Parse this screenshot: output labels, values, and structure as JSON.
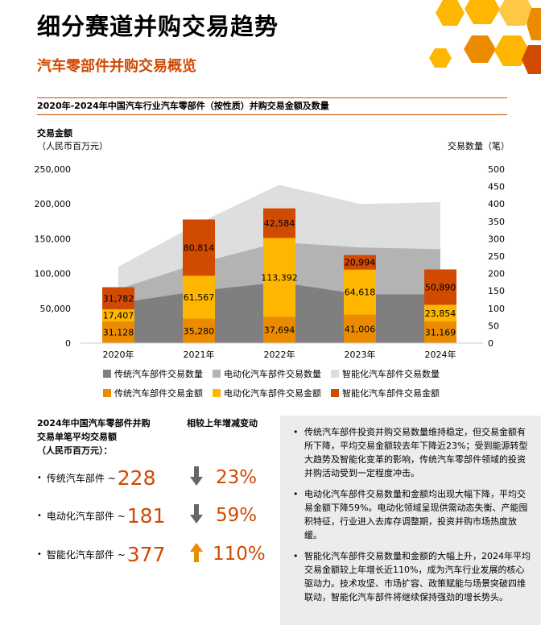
{
  "page": {
    "title": "细分赛道并购交易趋势",
    "subtitle": "汽车零部件并购交易概览",
    "chart_heading": "2020年-2024年中国汽车行业汽车零部件（按性质）并购交易金额及数量"
  },
  "colors": {
    "accent": "#d04a02",
    "trad_count": "#7f7f7f",
    "ev_count": "#b3b3b3",
    "smart_count": "#dedede",
    "trad_amount": "#eb8c00",
    "ev_amount": "#ffb600",
    "smart_amount": "#d04a02"
  },
  "chart_data": {
    "type": "bar",
    "stacked": true,
    "categories": [
      "2020年",
      "2021年",
      "2022年",
      "2023年",
      "2024年"
    ],
    "y_left": {
      "label_line1": "交易金额",
      "label_line2": "（人民币百万元）",
      "ticks": [
        "250,000",
        "200,000",
        "150,000",
        "100,000",
        "50,000",
        "0"
      ],
      "ylim": [
        0,
        250000
      ]
    },
    "y_right": {
      "label": "交易数量（笔）",
      "ticks": [
        "500",
        "450",
        "400",
        "350",
        "300",
        "250",
        "200",
        "150",
        "100",
        "50",
        "0"
      ],
      "ylim": [
        0,
        500
      ]
    },
    "bar_series": [
      {
        "name": "传统汽车部件交易金额",
        "values": [
          31128,
          35280,
          37694,
          41006,
          31169
        ],
        "labels": [
          "31,128",
          "35,280",
          "37,694",
          "41,006",
          "31,169"
        ]
      },
      {
        "name": "电动化汽车部件交易金额",
        "values": [
          17407,
          61567,
          113392,
          64618,
          23854
        ],
        "labels": [
          "17,407",
          "61,567",
          "113,392",
          "64,618",
          "23,854"
        ]
      },
      {
        "name": "智能化汽车部件交易金额",
        "values": [
          31782,
          80814,
          42584,
          20994,
          50890
        ],
        "labels": [
          "31,782",
          "80,814",
          "42,584",
          "20,994",
          "50,890"
        ]
      }
    ],
    "area_series": [
      {
        "name": "传统汽车部件交易数量",
        "values": [
          115,
          150,
          175,
          140,
          140
        ]
      },
      {
        "name": "电动化汽车部件交易数量",
        "values": [
          40,
          80,
          115,
          135,
          130
        ]
      },
      {
        "name": "智能化汽车部件交易数量",
        "values": [
          65,
          115,
          165,
          125,
          135
        ]
      }
    ],
    "legend_placement": "bottom",
    "grid": false
  },
  "averages": {
    "heading": "2024年中国汽车零部件并购交易单笔平均交易额（人民币百万元）：",
    "heading_line1": "2024年中国汽车零部件并购",
    "heading_line2": "交易单笔平均交易额",
    "heading_line3": "（人民币百万元）：",
    "change_heading": "相较上年增减变动",
    "rows": [
      {
        "label": "传统汽车部件 ~",
        "value": "228",
        "direction": "down",
        "change": "23%"
      },
      {
        "label": "电动化汽车部件 ~",
        "value": "181",
        "direction": "down",
        "change": "59%"
      },
      {
        "label": "智能化汽车部件 ~",
        "value": "377",
        "direction": "up",
        "change": "110%"
      }
    ]
  },
  "notes": [
    "传统汽车部件投资并购交易数量维持稳定，但交易金额有所下降，平均交易金额较去年下降近23%；受到能源转型大趋势及智能化变革的影响，传统汽车零部件领域的投资并购活动受到一定程度冲击。",
    "电动化汽车部件交易数量和金额均出现大幅下降，平均交易金额下降59%。电动化领域呈现供需动态失衡、产能囤积特征，行业进入去库存调整期，投资并购市场热度放缓。",
    "智能化汽车部件交易数量和金额的大幅上升，2024年平均交易金额较上年增长近110%，成为汽车行业发展的核心驱动力。技术攻坚、市场扩容、政策赋能与场景突破四维联动，智能化汽车部件将继续保持强劲的增长势头。"
  ]
}
